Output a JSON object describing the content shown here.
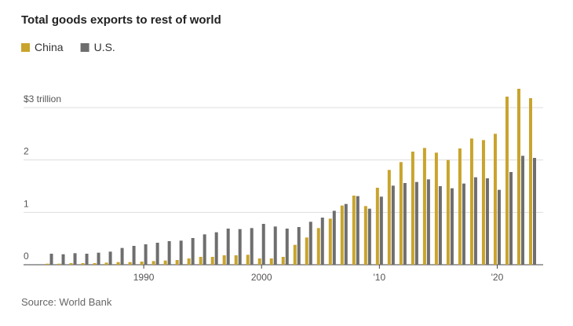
{
  "chart_data": {
    "type": "bar",
    "title": "Total goods exports to rest of world",
    "source": "Source: World Bank",
    "x": [
      1982,
      1983,
      1984,
      1985,
      1986,
      1987,
      1988,
      1989,
      1990,
      1991,
      1992,
      1993,
      1994,
      1995,
      1996,
      1997,
      1998,
      1999,
      2000,
      2001,
      2002,
      2003,
      2004,
      2005,
      2006,
      2007,
      2008,
      2009,
      2010,
      2011,
      2012,
      2013,
      2014,
      2015,
      2016,
      2017,
      2018,
      2019,
      2020,
      2021,
      2022,
      2023
    ],
    "series": [
      {
        "name": "China",
        "color": "#c9a42c",
        "values": [
          0.02,
          0.02,
          0.03,
          0.03,
          0.03,
          0.04,
          0.05,
          0.05,
          0.06,
          0.07,
          0.08,
          0.09,
          0.12,
          0.15,
          0.15,
          0.18,
          0.18,
          0.19,
          0.12,
          0.12,
          0.15,
          0.38,
          0.52,
          0.7,
          0.88,
          1.13,
          1.32,
          1.12,
          1.47,
          1.81,
          1.96,
          2.16,
          2.23,
          2.14,
          2.0,
          2.22,
          2.41,
          2.38,
          2.5,
          3.21,
          3.36,
          3.18
        ]
      },
      {
        "name": "U.S.",
        "color": "#6e6e6e",
        "values": [
          0.21,
          0.2,
          0.22,
          0.21,
          0.23,
          0.25,
          0.32,
          0.36,
          0.39,
          0.42,
          0.45,
          0.46,
          0.51,
          0.58,
          0.62,
          0.69,
          0.68,
          0.7,
          0.78,
          0.73,
          0.69,
          0.72,
          0.82,
          0.9,
          1.03,
          1.16,
          1.31,
          1.07,
          1.3,
          1.51,
          1.56,
          1.58,
          1.63,
          1.5,
          1.46,
          1.55,
          1.67,
          1.65,
          1.43,
          1.77,
          2.08,
          2.04
        ]
      }
    ],
    "xlim": [
      1979.8,
      2023.9
    ],
    "xticks": [
      1990,
      2000,
      {
        "value": 2010,
        "label": "'10"
      },
      {
        "value": 2020,
        "label": "'20"
      }
    ],
    "ylim": [
      0,
      3.6
    ],
    "yticks": [
      0,
      1,
      2,
      {
        "value": 3,
        "label": "$3 trillion"
      }
    ],
    "grid": true,
    "legend": "top-left"
  }
}
